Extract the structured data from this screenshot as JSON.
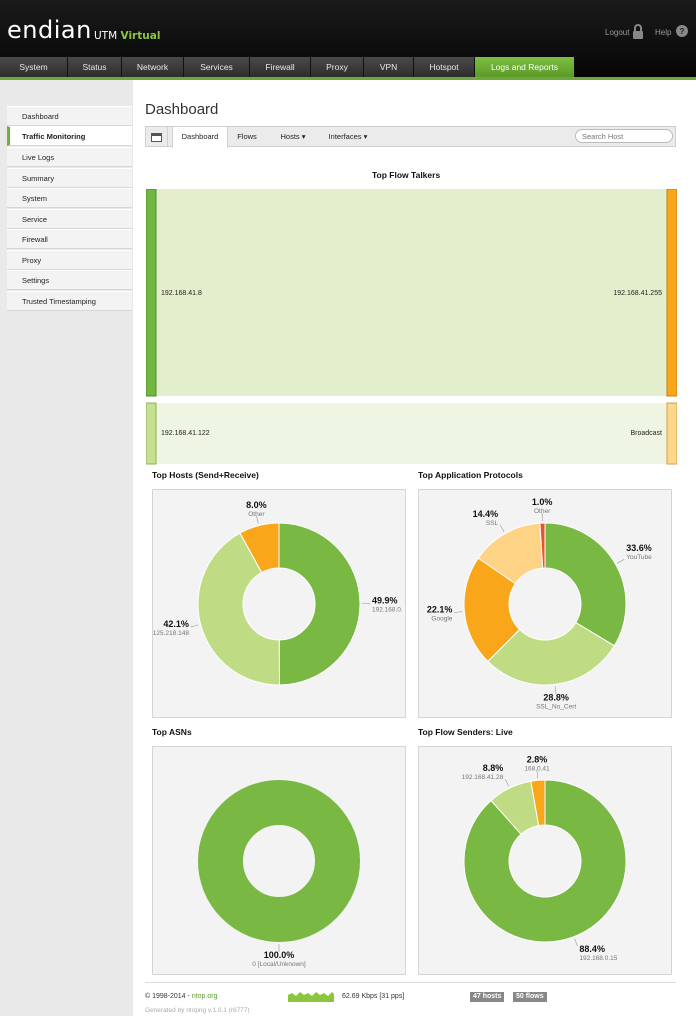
{
  "app": {
    "logo": "endian",
    "product": "UTM",
    "edition": "Virtual"
  },
  "top_links": {
    "logout": "Logout",
    "help": "Help"
  },
  "nav": {
    "items": [
      "System",
      "Status",
      "Network",
      "Services",
      "Firewall",
      "Proxy",
      "VPN",
      "Hotspot",
      "Logs and Reports"
    ],
    "active": "Logs and Reports"
  },
  "sidebar": {
    "items": [
      "Dashboard",
      "Traffic Monitoring",
      "Live Logs",
      "Summary",
      "System",
      "Service",
      "Firewall",
      "Proxy",
      "Settings",
      "Trusted Timestamping"
    ],
    "active": "Traffic Monitoring"
  },
  "page": {
    "title": "Dashboard"
  },
  "tabs": {
    "items": [
      "Dashboard",
      "Flows",
      "Hosts ▾",
      "Interfaces ▾"
    ],
    "active": "Dashboard"
  },
  "search": {
    "placeholder": "Search Host"
  },
  "flow_talkers": {
    "title": "Top Flow Talkers",
    "flows": [
      {
        "source": "192.168.41.8",
        "target": "192.168.41.255"
      },
      {
        "source": "192.168.41.122",
        "target": "Broadcast"
      }
    ]
  },
  "chart_data": [
    {
      "type": "pie",
      "title": "Top Hosts (Send+Receive)",
      "labels": [
        "192.168.0.",
        "125.218.148",
        "Other"
      ],
      "values": [
        49.9,
        42.1,
        8.0
      ],
      "value_labels": [
        "49.9%",
        "42.1%",
        "8.0%"
      ],
      "colors": [
        "#78b843",
        "#bfdc85",
        "#f9a61a"
      ]
    },
    {
      "type": "pie",
      "title": "Top Application Protocols",
      "labels": [
        "YouTube",
        "SSL_No_Cert",
        "Google",
        "SSL",
        "Other"
      ],
      "values": [
        33.6,
        28.8,
        22.1,
        14.4,
        1.0
      ],
      "value_labels": [
        "33.6%",
        "28.8%",
        "22.1%",
        "14.4%",
        "1.0%"
      ],
      "colors": [
        "#78b843",
        "#bfdc85",
        "#f9a61a",
        "#fed385",
        "#e8522c"
      ]
    },
    {
      "type": "pie",
      "title": "Top ASNs",
      "labels": [
        "0 [Local/Unknown]"
      ],
      "values": [
        100.0
      ],
      "value_labels": [
        "100.0%"
      ],
      "colors": [
        "#78b843"
      ]
    },
    {
      "type": "pie",
      "title": "Top Flow Senders: Live",
      "labels": [
        "192.168.0.15",
        "192.168.41.28",
        "168.0.41"
      ],
      "values": [
        88.4,
        8.8,
        2.8
      ],
      "value_labels": [
        "88.4%",
        "8.8%",
        "2.8%"
      ],
      "colors": [
        "#78b843",
        "#bfdc85",
        "#f9a61a"
      ]
    }
  ],
  "footer": {
    "copyright": "© 1998-2014 -",
    "link": "ntop.org",
    "generated": "Generated by ntopng v.1.0.1 (r6777)",
    "throughput": "62.69 Kbps [31 pps]",
    "hosts_badge": "47 hosts",
    "flows_badge": "50 flows"
  },
  "colors": {
    "accent": "#78b843",
    "nav_active": "#6cb33e",
    "orange": "#f9a61a"
  }
}
